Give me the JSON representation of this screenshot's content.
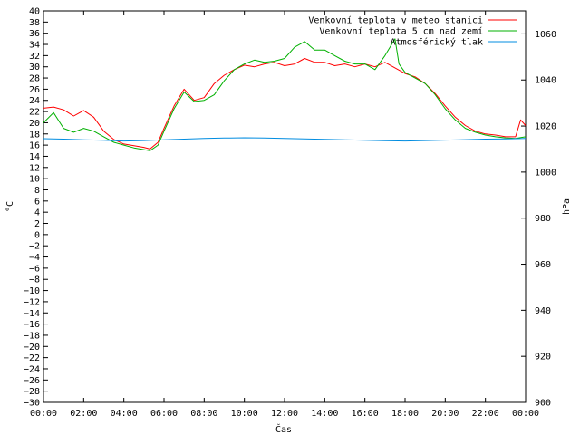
{
  "chart_data": {
    "type": "line",
    "xlabel": "Čas",
    "ylabel_left": "°C",
    "ylabel_right": "hPa",
    "ylim_left": [
      -30,
      40
    ],
    "ylim_right": [
      900,
      1070
    ],
    "x_hours_range": [
      0,
      24
    ],
    "x_ticks": [
      "00:00",
      "02:00",
      "04:00",
      "06:00",
      "08:00",
      "10:00",
      "12:00",
      "14:00",
      "16:00",
      "18:00",
      "20:00",
      "22:00",
      "00:00"
    ],
    "y_ticks_left": [
      40,
      38,
      36,
      34,
      32,
      30,
      28,
      26,
      24,
      22,
      20,
      18,
      16,
      14,
      12,
      10,
      8,
      6,
      4,
      2,
      0,
      -2,
      -4,
      -6,
      -8,
      -10,
      -12,
      -14,
      -16,
      -18,
      -20,
      -22,
      -24,
      -26,
      -28,
      -30
    ],
    "y_ticks_right": [
      1060,
      1040,
      1020,
      1000,
      980,
      960,
      940,
      920,
      900
    ],
    "legend_position": "top-right",
    "series": [
      {
        "name": "Venkovní teplota v meteo stanici",
        "color": "#ff0000",
        "axis": "left",
        "points": [
          [
            0,
            22.6
          ],
          [
            0.5,
            22.8
          ],
          [
            1,
            22.3
          ],
          [
            1.5,
            21.2
          ],
          [
            2,
            22.2
          ],
          [
            2.5,
            21.0
          ],
          [
            3,
            18.5
          ],
          [
            3.5,
            17.0
          ],
          [
            4,
            16.2
          ],
          [
            4.5,
            15.9
          ],
          [
            5,
            15.6
          ],
          [
            5.3,
            15.3
          ],
          [
            5.7,
            16.5
          ],
          [
            6,
            19.0
          ],
          [
            6.5,
            23.0
          ],
          [
            7,
            26.0
          ],
          [
            7.5,
            24.0
          ],
          [
            8,
            24.5
          ],
          [
            8.5,
            27.0
          ],
          [
            9,
            28.5
          ],
          [
            9.5,
            29.5
          ],
          [
            10,
            30.3
          ],
          [
            10.5,
            30.0
          ],
          [
            11,
            30.5
          ],
          [
            11.5,
            30.8
          ],
          [
            12,
            30.2
          ],
          [
            12.5,
            30.5
          ],
          [
            13,
            31.5
          ],
          [
            13.5,
            30.8
          ],
          [
            14,
            30.8
          ],
          [
            14.5,
            30.2
          ],
          [
            15,
            30.5
          ],
          [
            15.5,
            30.0
          ],
          [
            16,
            30.5
          ],
          [
            16.5,
            30.0
          ],
          [
            17,
            30.8
          ],
          [
            17.5,
            29.8
          ],
          [
            18,
            28.8
          ],
          [
            18.5,
            28.2
          ],
          [
            19,
            27.0
          ],
          [
            19.5,
            25.2
          ],
          [
            20,
            23.0
          ],
          [
            20.5,
            21.0
          ],
          [
            21,
            19.5
          ],
          [
            21.5,
            18.5
          ],
          [
            22,
            18.0
          ],
          [
            22.5,
            17.8
          ],
          [
            23,
            17.5
          ],
          [
            23.5,
            17.5
          ],
          [
            23.75,
            20.5
          ],
          [
            24,
            19.5
          ]
        ]
      },
      {
        "name": "Venkovní teplota 5 cm nad zemí",
        "color": "#00b000",
        "axis": "left",
        "points": [
          [
            0,
            20.0
          ],
          [
            0.5,
            21.8
          ],
          [
            1,
            19.0
          ],
          [
            1.5,
            18.3
          ],
          [
            2,
            19.0
          ],
          [
            2.5,
            18.5
          ],
          [
            3,
            17.5
          ],
          [
            3.5,
            16.5
          ],
          [
            4,
            16.0
          ],
          [
            4.5,
            15.5
          ],
          [
            5,
            15.2
          ],
          [
            5.3,
            15.0
          ],
          [
            5.7,
            16.0
          ],
          [
            6,
            18.5
          ],
          [
            6.5,
            22.5
          ],
          [
            7,
            25.5
          ],
          [
            7.5,
            23.8
          ],
          [
            8,
            24.0
          ],
          [
            8.5,
            25.0
          ],
          [
            9,
            27.5
          ],
          [
            9.5,
            29.5
          ],
          [
            10,
            30.5
          ],
          [
            10.5,
            31.2
          ],
          [
            11,
            30.8
          ],
          [
            11.5,
            31.0
          ],
          [
            12,
            31.5
          ],
          [
            12.5,
            33.5
          ],
          [
            13,
            34.5
          ],
          [
            13.5,
            33.0
          ],
          [
            14,
            33.0
          ],
          [
            14.5,
            32.0
          ],
          [
            15,
            31.0
          ],
          [
            15.5,
            30.5
          ],
          [
            16,
            30.5
          ],
          [
            16.5,
            29.5
          ],
          [
            17,
            32.0
          ],
          [
            17.5,
            35.0
          ],
          [
            17.7,
            30.5
          ],
          [
            18,
            29.0
          ],
          [
            18.5,
            28.0
          ],
          [
            19,
            27.0
          ],
          [
            19.5,
            25.0
          ],
          [
            20,
            22.5
          ],
          [
            20.5,
            20.5
          ],
          [
            21,
            19.0
          ],
          [
            21.5,
            18.3
          ],
          [
            22,
            17.8
          ],
          [
            22.5,
            17.5
          ],
          [
            23,
            17.3
          ],
          [
            23.5,
            17.2
          ],
          [
            24,
            17.5
          ]
        ]
      },
      {
        "name": "Atmosférický tlak",
        "color": "#008ce0",
        "axis": "right",
        "points": [
          [
            0,
            1014.5
          ],
          [
            1,
            1014.3
          ],
          [
            2,
            1014.0
          ],
          [
            3,
            1013.8
          ],
          [
            4,
            1013.5
          ],
          [
            5,
            1013.7
          ],
          [
            6,
            1014.0
          ],
          [
            7,
            1014.3
          ],
          [
            8,
            1014.6
          ],
          [
            9,
            1014.8
          ],
          [
            10,
            1014.9
          ],
          [
            11,
            1014.8
          ],
          [
            12,
            1014.6
          ],
          [
            13,
            1014.4
          ],
          [
            14,
            1014.2
          ],
          [
            15,
            1014.0
          ],
          [
            16,
            1013.8
          ],
          [
            17,
            1013.6
          ],
          [
            18,
            1013.5
          ],
          [
            19,
            1013.7
          ],
          [
            20,
            1013.9
          ],
          [
            21,
            1014.1
          ],
          [
            22,
            1014.3
          ],
          [
            23,
            1014.4
          ],
          [
            24,
            1014.6
          ]
        ]
      }
    ]
  }
}
